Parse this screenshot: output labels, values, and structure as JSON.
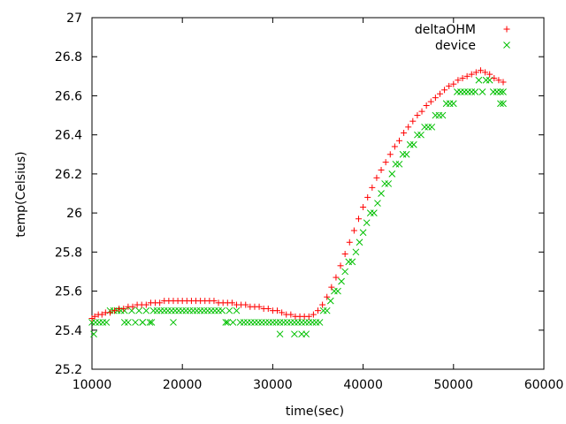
{
  "chart_data": {
    "type": "scatter",
    "xlabel": "time(sec)",
    "ylabel": "temp(Celsius)",
    "xlim": [
      10000,
      60000
    ],
    "ylim": [
      25.2,
      27
    ],
    "x_ticks": [
      10000,
      20000,
      30000,
      40000,
      50000,
      60000
    ],
    "y_ticks": [
      25.2,
      25.4,
      25.6,
      25.8,
      26,
      26.2,
      26.4,
      26.6,
      26.8,
      27
    ],
    "x_tick_labels": [
      "10000",
      "20000",
      "30000",
      "40000",
      "50000",
      "60000"
    ],
    "y_tick_labels": [
      "25.2",
      "25.4",
      "25.6",
      "25.8",
      "26",
      "26.2",
      "26.4",
      "26.6",
      "26.8",
      "27"
    ],
    "legend_position": "top-right",
    "grid": false,
    "series": [
      {
        "name": "deltaOHM",
        "color": "#ff0000",
        "marker": "plus",
        "points": [
          [
            10000,
            25.46
          ],
          [
            10300,
            25.47
          ],
          [
            10700,
            25.48
          ],
          [
            11100,
            25.48
          ],
          [
            11500,
            25.49
          ],
          [
            12000,
            25.49
          ],
          [
            12500,
            25.5
          ],
          [
            13000,
            25.51
          ],
          [
            13500,
            25.51
          ],
          [
            14000,
            25.52
          ],
          [
            14500,
            25.52
          ],
          [
            15000,
            25.53
          ],
          [
            15500,
            25.53
          ],
          [
            16000,
            25.53
          ],
          [
            16500,
            25.54
          ],
          [
            17000,
            25.54
          ],
          [
            17500,
            25.54
          ],
          [
            18000,
            25.55
          ],
          [
            18500,
            25.55
          ],
          [
            19000,
            25.55
          ],
          [
            19500,
            25.55
          ],
          [
            20000,
            25.55
          ],
          [
            20500,
            25.55
          ],
          [
            21000,
            25.55
          ],
          [
            21500,
            25.55
          ],
          [
            22000,
            25.55
          ],
          [
            22500,
            25.55
          ],
          [
            23000,
            25.55
          ],
          [
            23500,
            25.55
          ],
          [
            24000,
            25.54
          ],
          [
            24500,
            25.54
          ],
          [
            25000,
            25.54
          ],
          [
            25500,
            25.54
          ],
          [
            26000,
            25.53
          ],
          [
            26500,
            25.53
          ],
          [
            27000,
            25.53
          ],
          [
            27500,
            25.52
          ],
          [
            28000,
            25.52
          ],
          [
            28500,
            25.52
          ],
          [
            29000,
            25.51
          ],
          [
            29500,
            25.51
          ],
          [
            30000,
            25.5
          ],
          [
            30500,
            25.5
          ],
          [
            31000,
            25.49
          ],
          [
            31500,
            25.48
          ],
          [
            32000,
            25.48
          ],
          [
            32500,
            25.47
          ],
          [
            33000,
            25.47
          ],
          [
            33500,
            25.47
          ],
          [
            34000,
            25.47
          ],
          [
            34500,
            25.48
          ],
          [
            35000,
            25.5
          ],
          [
            35500,
            25.53
          ],
          [
            36000,
            25.57
          ],
          [
            36500,
            25.62
          ],
          [
            37000,
            25.67
          ],
          [
            37500,
            25.73
          ],
          [
            38000,
            25.79
          ],
          [
            38500,
            25.85
          ],
          [
            39000,
            25.91
          ],
          [
            39500,
            25.97
          ],
          [
            40000,
            26.03
          ],
          [
            40500,
            26.08
          ],
          [
            41000,
            26.13
          ],
          [
            41500,
            26.18
          ],
          [
            42000,
            26.22
          ],
          [
            42500,
            26.26
          ],
          [
            43000,
            26.3
          ],
          [
            43500,
            26.34
          ],
          [
            44000,
            26.37
          ],
          [
            44500,
            26.41
          ],
          [
            45000,
            26.44
          ],
          [
            45500,
            26.47
          ],
          [
            46000,
            26.5
          ],
          [
            46500,
            26.52
          ],
          [
            47000,
            26.55
          ],
          [
            47500,
            26.57
          ],
          [
            48000,
            26.59
          ],
          [
            48500,
            26.61
          ],
          [
            49000,
            26.63
          ],
          [
            49500,
            26.65
          ],
          [
            50000,
            26.66
          ],
          [
            50500,
            26.68
          ],
          [
            51000,
            26.69
          ],
          [
            51500,
            26.7
          ],
          [
            52000,
            26.71
          ],
          [
            52500,
            26.72
          ],
          [
            53000,
            26.73
          ],
          [
            53500,
            26.72
          ],
          [
            54000,
            26.71
          ],
          [
            54500,
            26.69
          ],
          [
            55000,
            26.68
          ],
          [
            55500,
            26.67
          ]
        ]
      },
      {
        "name": "device",
        "color": "#00c000",
        "marker": "cross",
        "points": [
          [
            10000,
            25.44
          ],
          [
            10400,
            25.44
          ],
          [
            10800,
            25.44
          ],
          [
            11200,
            25.44
          ],
          [
            11600,
            25.44
          ],
          [
            12000,
            25.5
          ],
          [
            12400,
            25.5
          ],
          [
            12800,
            25.5
          ],
          [
            13200,
            25.5
          ],
          [
            13600,
            25.5
          ],
          [
            14000,
            25.44
          ],
          [
            14400,
            25.5
          ],
          [
            14800,
            25.44
          ],
          [
            15200,
            25.5
          ],
          [
            15600,
            25.44
          ],
          [
            16000,
            25.5
          ],
          [
            16400,
            25.44
          ],
          [
            16800,
            25.5
          ],
          [
            17200,
            25.5
          ],
          [
            17600,
            25.5
          ],
          [
            18000,
            25.5
          ],
          [
            18400,
            25.5
          ],
          [
            18800,
            25.5
          ],
          [
            19200,
            25.5
          ],
          [
            19600,
            25.5
          ],
          [
            20000,
            25.5
          ],
          [
            20400,
            25.5
          ],
          [
            20800,
            25.5
          ],
          [
            21200,
            25.5
          ],
          [
            21600,
            25.5
          ],
          [
            22000,
            25.5
          ],
          [
            22400,
            25.5
          ],
          [
            22800,
            25.5
          ],
          [
            23200,
            25.5
          ],
          [
            23600,
            25.5
          ],
          [
            24000,
            25.5
          ],
          [
            24400,
            25.5
          ],
          [
            24800,
            25.44
          ],
          [
            25200,
            25.5
          ],
          [
            25600,
            25.44
          ],
          [
            26000,
            25.5
          ],
          [
            26400,
            25.44
          ],
          [
            26800,
            25.44
          ],
          [
            27200,
            25.44
          ],
          [
            27600,
            25.44
          ],
          [
            28000,
            25.44
          ],
          [
            28400,
            25.44
          ],
          [
            28800,
            25.44
          ],
          [
            29200,
            25.44
          ],
          [
            29600,
            25.44
          ],
          [
            30000,
            25.44
          ],
          [
            30400,
            25.44
          ],
          [
            30800,
            25.44
          ],
          [
            31200,
            25.44
          ],
          [
            31600,
            25.44
          ],
          [
            32000,
            25.44
          ],
          [
            32400,
            25.44
          ],
          [
            32800,
            25.44
          ],
          [
            33200,
            25.44
          ],
          [
            33600,
            25.44
          ],
          [
            34000,
            25.44
          ],
          [
            34400,
            25.44
          ],
          [
            34800,
            25.44
          ],
          [
            35200,
            25.44
          ],
          [
            35600,
            25.5
          ],
          [
            36000,
            25.5
          ],
          [
            36400,
            25.55
          ],
          [
            36800,
            25.6
          ],
          [
            37200,
            25.6
          ],
          [
            37600,
            25.65
          ],
          [
            38000,
            25.7
          ],
          [
            38400,
            25.75
          ],
          [
            38800,
            25.75
          ],
          [
            39200,
            25.8
          ],
          [
            39600,
            25.85
          ],
          [
            40000,
            25.9
          ],
          [
            40400,
            25.95
          ],
          [
            40800,
            26.0
          ],
          [
            41200,
            26.0
          ],
          [
            41600,
            26.05
          ],
          [
            42000,
            26.1
          ],
          [
            42400,
            26.15
          ],
          [
            42800,
            26.15
          ],
          [
            43200,
            26.2
          ],
          [
            43600,
            26.25
          ],
          [
            44000,
            26.25
          ],
          [
            44400,
            26.3
          ],
          [
            44800,
            26.3
          ],
          [
            45200,
            26.35
          ],
          [
            45600,
            26.35
          ],
          [
            46000,
            26.4
          ],
          [
            46400,
            26.4
          ],
          [
            46800,
            26.44
          ],
          [
            47200,
            26.44
          ],
          [
            47600,
            26.44
          ],
          [
            48000,
            26.5
          ],
          [
            48400,
            26.5
          ],
          [
            48800,
            26.5
          ],
          [
            49200,
            26.56
          ],
          [
            49600,
            26.56
          ],
          [
            50000,
            26.56
          ],
          [
            50400,
            26.62
          ],
          [
            50800,
            26.62
          ],
          [
            51200,
            26.62
          ],
          [
            51600,
            26.62
          ],
          [
            52000,
            26.62
          ],
          [
            52400,
            26.62
          ],
          [
            52800,
            26.68
          ],
          [
            53200,
            26.62
          ],
          [
            53600,
            26.68
          ],
          [
            54000,
            26.68
          ],
          [
            54400,
            26.62
          ],
          [
            54800,
            26.62
          ],
          [
            55200,
            26.62
          ],
          [
            55500,
            26.62
          ],
          [
            10200,
            25.38
          ],
          [
            30800,
            25.38
          ],
          [
            32400,
            25.38
          ],
          [
            33200,
            25.38
          ],
          [
            33700,
            25.38
          ],
          [
            19000,
            25.44
          ],
          [
            13600,
            25.44
          ],
          [
            15600,
            25.44
          ],
          [
            16600,
            25.44
          ],
          [
            25000,
            25.44
          ],
          [
            55200,
            26.56
          ],
          [
            55500,
            26.56
          ]
        ]
      }
    ]
  }
}
